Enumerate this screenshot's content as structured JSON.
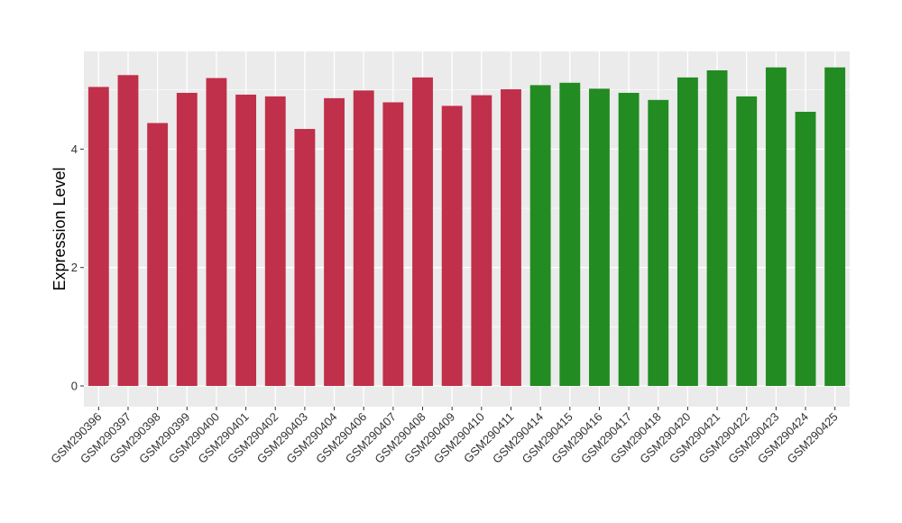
{
  "chart_data": {
    "type": "bar",
    "ylabel": "Expression Level",
    "xlabel": "",
    "ylim": [
      -0.35,
      5.65
    ],
    "yticks": [
      0,
      2,
      4
    ],
    "grid": true,
    "categories": [
      "GSM290396",
      "GSM290397",
      "GSM290398",
      "GSM290399",
      "GSM290400",
      "GSM290401",
      "GSM290402",
      "GSM290403",
      "GSM290404",
      "GSM290406",
      "GSM290407",
      "GSM290408",
      "GSM290409",
      "GSM290410",
      "GSM290411",
      "GSM290414",
      "GSM290415",
      "GSM290416",
      "GSM290417",
      "GSM290418",
      "GSM290420",
      "GSM290421",
      "GSM290422",
      "GSM290423",
      "GSM290424",
      "GSM290425"
    ],
    "values": [
      5.05,
      5.25,
      4.44,
      4.95,
      5.2,
      4.92,
      4.89,
      4.34,
      4.86,
      4.99,
      4.79,
      5.21,
      4.73,
      4.91,
      5.01,
      5.08,
      5.12,
      5.02,
      4.95,
      4.83,
      5.21,
      5.33,
      4.89,
      5.38,
      4.63,
      5.38
    ],
    "bar_colors": [
      "#C0304A",
      "#C0304A",
      "#C0304A",
      "#C0304A",
      "#C0304A",
      "#C0304A",
      "#C0304A",
      "#C0304A",
      "#C0304A",
      "#C0304A",
      "#C0304A",
      "#C0304A",
      "#C0304A",
      "#C0304A",
      "#C0304A",
      "#228B22",
      "#228B22",
      "#228B22",
      "#228B22",
      "#228B22",
      "#228B22",
      "#228B22",
      "#228B22",
      "#228B22",
      "#228B22",
      "#228B22"
    ],
    "panel_background": "#EBEBEB",
    "grid_color": "#FFFFFF"
  }
}
